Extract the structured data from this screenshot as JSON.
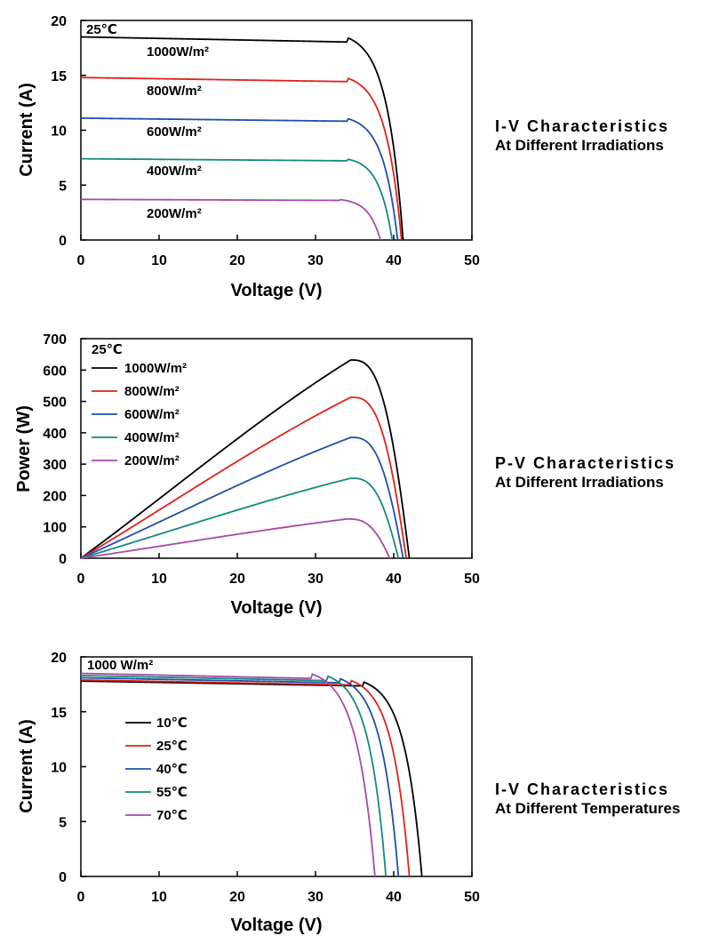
{
  "chart_data": [
    {
      "type": "line",
      "caption": [
        "I-V Characteristics",
        "At Different Irradiations"
      ],
      "xlabel": "Voltage  (V)",
      "ylabel": "Current (A)",
      "xlim": [
        0,
        50
      ],
      "ylim": [
        0,
        20
      ],
      "xticks": [
        "0",
        "10",
        "20",
        "30",
        "40",
        "50"
      ],
      "yticks": [
        "0",
        "5",
        "10",
        "15",
        "20"
      ],
      "condition": "25℃",
      "legend": "inline",
      "curve_kind": "iv",
      "series": [
        {
          "name": "1000W/m²",
          "color": "#000000",
          "isc": 18.5,
          "voc": 41.2,
          "vknee": 34
        },
        {
          "name": "800W/m²",
          "color": "#e0211b",
          "isc": 14.8,
          "voc": 41.0,
          "vknee": 34
        },
        {
          "name": "600W/m²",
          "color": "#1f4fa8",
          "isc": 11.1,
          "voc": 40.5,
          "vknee": 34
        },
        {
          "name": "400W/m²",
          "color": "#138a7e",
          "isc": 7.4,
          "voc": 39.8,
          "vknee": 34
        },
        {
          "name": "200W/m²",
          "color": "#a64aa8",
          "isc": 3.7,
          "voc": 38.3,
          "vknee": 33
        }
      ]
    },
    {
      "type": "line",
      "caption": [
        "P-V Characteristics",
        "At Different Irradiations"
      ],
      "xlabel": "Voltage  (V)",
      "ylabel": "Power (W)",
      "xlim": [
        0,
        50
      ],
      "ylim": [
        0,
        700
      ],
      "xticks": [
        "0",
        "10",
        "20",
        "30",
        "40",
        "50"
      ],
      "yticks": [
        "0",
        "100",
        "200",
        "300",
        "400",
        "500",
        "600",
        "700"
      ],
      "condition": "25℃",
      "legend": "top-left",
      "curve_kind": "pv",
      "series": [
        {
          "name": "1000W/m²",
          "color": "#000000",
          "pmax": 632,
          "vmp": 34.5,
          "voc": 42.0
        },
        {
          "name": "800W/m²",
          "color": "#e0211b",
          "pmax": 513,
          "vmp": 34.5,
          "voc": 41.6
        },
        {
          "name": "600W/m²",
          "color": "#1f4fa8",
          "pmax": 385,
          "vmp": 34.5,
          "voc": 41.2
        },
        {
          "name": "400W/m²",
          "color": "#138a7e",
          "pmax": 255,
          "vmp": 34.5,
          "voc": 40.6
        },
        {
          "name": "200W/m²",
          "color": "#a64aa8",
          "pmax": 125,
          "vmp": 34.0,
          "voc": 39.5
        }
      ]
    },
    {
      "type": "line",
      "caption": [
        "I-V Characteristics",
        "At Different Temperatures"
      ],
      "xlabel": "Voltage  (V)",
      "ylabel": "Current (A)",
      "xlim": [
        0,
        50
      ],
      "ylim": [
        0,
        20
      ],
      "xticks": [
        "0",
        "10",
        "20",
        "30",
        "40",
        "50"
      ],
      "yticks": [
        "0",
        "5",
        "10",
        "15",
        "20"
      ],
      "condition": "1000 W/m²",
      "legend": "left",
      "curve_kind": "iv",
      "series": [
        {
          "name": "10℃",
          "color": "#000000",
          "isc": 17.8,
          "voc": 43.6,
          "vknee": 36
        },
        {
          "name": "25℃",
          "color": "#e0211b",
          "isc": 17.9,
          "voc": 42.0,
          "vknee": 34.5
        },
        {
          "name": "40℃",
          "color": "#1f4fa8",
          "isc": 18.1,
          "voc": 40.6,
          "vknee": 33
        },
        {
          "name": "55℃",
          "color": "#138a7e",
          "isc": 18.3,
          "voc": 39.0,
          "vknee": 31.5
        },
        {
          "name": "70℃",
          "color": "#a64aa8",
          "isc": 18.5,
          "voc": 37.6,
          "vknee": 29.5
        }
      ]
    }
  ]
}
